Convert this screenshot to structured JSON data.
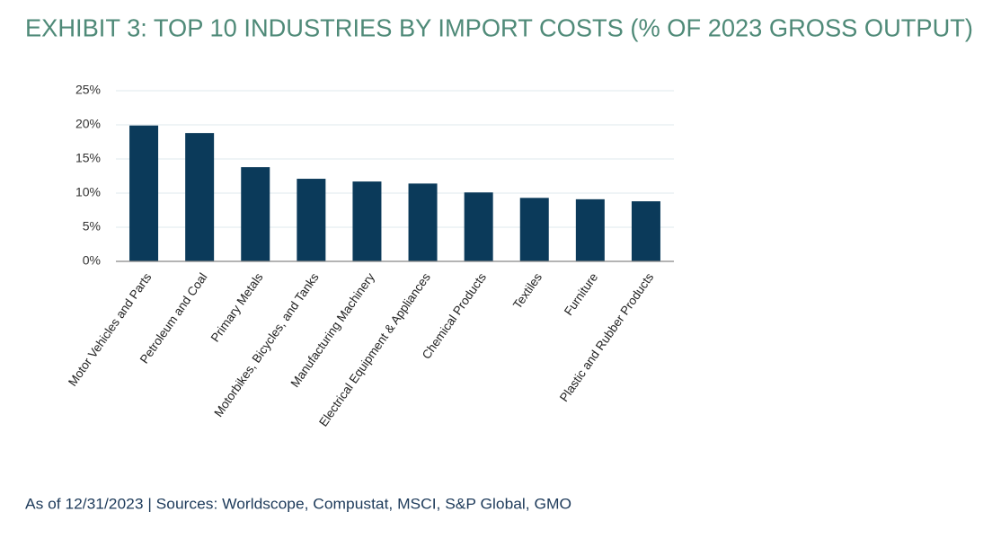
{
  "chart_data": {
    "type": "bar",
    "title": "EXHIBIT 3: TOP 10 INDUSTRIES BY IMPORT COSTS (% OF 2023 GROSS OUTPUT)",
    "footnote": "As of 12/31/2023 | Sources: Worldscope, Compustat, MSCI, S&P Global, GMO",
    "categories": [
      "Motor Vehicles and Parts",
      "Petroleum and Coal",
      "Primary Metals",
      "Motorbikes, Bicycles, and Tanks",
      "Manufacturing Machinery",
      "Electrical Equipment & Appliances",
      "Chemical Products",
      "Textiles",
      "Furniture",
      "Plastic and Rubber Products"
    ],
    "values": [
      19.9,
      18.8,
      13.8,
      12.1,
      11.7,
      11.4,
      10.1,
      9.3,
      9.1,
      8.8
    ],
    "color": "#0b3a5a",
    "ylim": [
      0,
      25
    ],
    "yticks": [
      {
        "value": 0,
        "label": "0%"
      },
      {
        "value": 5,
        "label": "5%"
      },
      {
        "value": 10,
        "label": "10%"
      },
      {
        "value": 15,
        "label": "15%"
      },
      {
        "value": 20,
        "label": "20%"
      },
      {
        "value": 25,
        "label": "25%"
      }
    ],
    "grid": true
  }
}
